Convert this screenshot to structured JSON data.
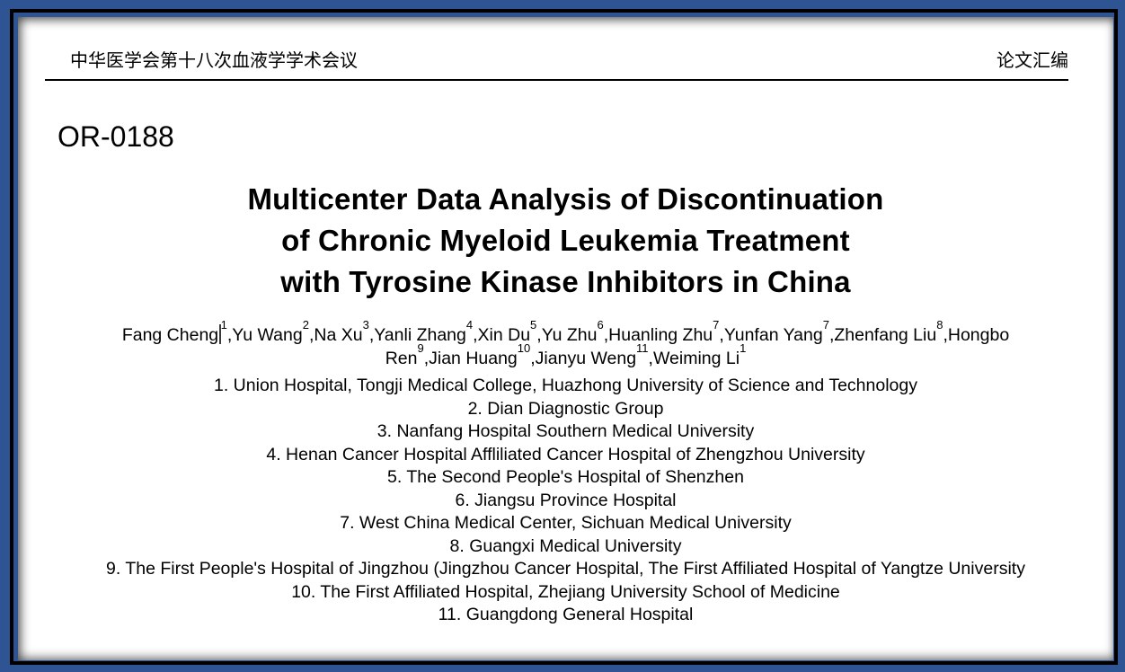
{
  "window": {
    "background_color": "#2f5494",
    "frame_border_color": "#000000",
    "page_color": "#ffffff"
  },
  "header": {
    "left": "中华医学会第十八次血液学学术会议",
    "right": "论文汇编"
  },
  "paper": {
    "id": "OR-0188",
    "title_lines": [
      "Multicenter Data Analysis of Discontinuation",
      "of Chronic Myeloid Leukemia Treatment",
      "with Tyrosine Kinase Inhibitors in China"
    ],
    "authors": [
      {
        "name": "Fang Cheng",
        "sup": "1",
        "caret": true
      },
      {
        "name": "Yu Wang",
        "sup": "2"
      },
      {
        "name": "Na Xu",
        "sup": "3"
      },
      {
        "name": "Yanli Zhang",
        "sup": "4"
      },
      {
        "name": "Xin Du",
        "sup": "5"
      },
      {
        "name": "Yu Zhu",
        "sup": "6"
      },
      {
        "name": "Huanling Zhu",
        "sup": "7"
      },
      {
        "name": "Yunfan Yang",
        "sup": "7"
      },
      {
        "name": "Zhenfang Liu",
        "sup": "8"
      },
      {
        "name": "Hongbo Ren",
        "sup": "9"
      },
      {
        "name": "Jian Huang",
        "sup": "10"
      },
      {
        "name": "Jianyu Weng",
        "sup": "11"
      },
      {
        "name": "Weiming Li",
        "sup": "1"
      }
    ],
    "affiliations": [
      "1. Union Hospital, Tongji Medical College, Huazhong University of Science and Technology",
      "2. Dian Diagnostic Group",
      "3. Nanfang Hospital Southern Medical University",
      "4. Henan Cancer Hospital Affliliated Cancer Hospital of Zhengzhou University",
      "5. The Second People's Hospital of Shenzhen",
      "6. Jiangsu Province Hospital",
      "7. West China Medical Center, Sichuan Medical University",
      "8. Guangxi Medical University",
      "9. The First People's Hospital of Jingzhou (Jingzhou Cancer Hospital, The First Affiliated Hospital of Yangtze University",
      "10. The First Affiliated Hospital, Zhejiang University School of Medicine",
      "11. Guangdong General Hospital"
    ]
  }
}
